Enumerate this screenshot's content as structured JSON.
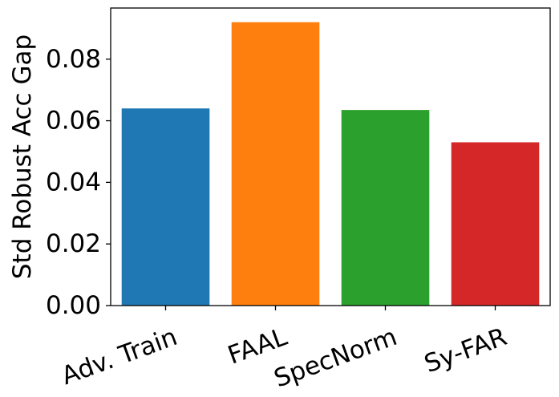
{
  "chart_data": {
    "type": "bar",
    "title": "",
    "xlabel": "",
    "ylabel": "Std Robust Acc Gap",
    "categories": [
      "Adv. Train",
      "FAAL",
      "SpecNorm",
      "Sy-FAR"
    ],
    "values": [
      0.064,
      0.092,
      0.0635,
      0.053
    ],
    "colors": [
      "#1f77b4",
      "#ff7f0e",
      "#2ca02c",
      "#d62728"
    ],
    "ylim": [
      0,
      0.0966
    ],
    "yticks": [
      0.0,
      0.02,
      0.04,
      0.06,
      0.08
    ],
    "ytick_labels": [
      "0.00",
      "0.02",
      "0.04",
      "0.06",
      "0.08"
    ],
    "xtick_rotation_deg": -20,
    "grid": false,
    "legend": "none"
  }
}
